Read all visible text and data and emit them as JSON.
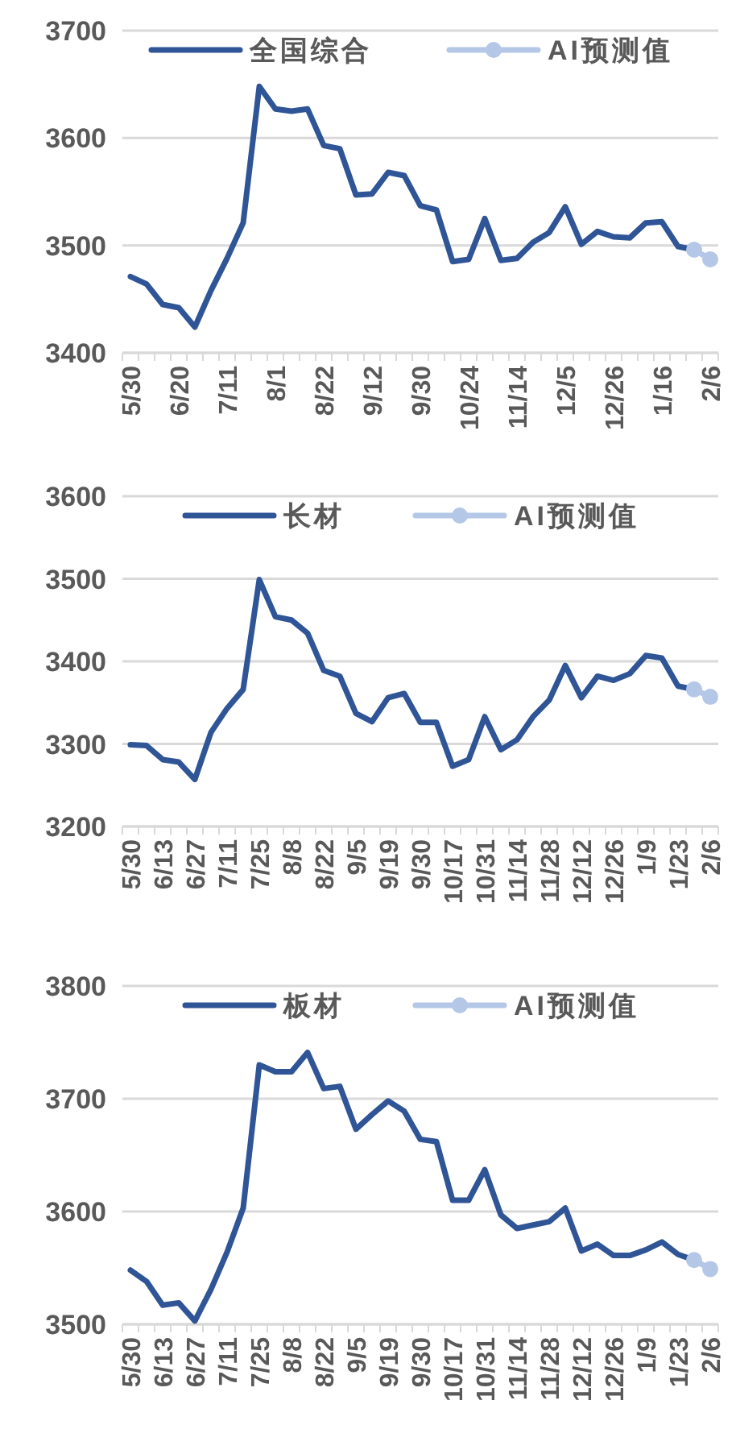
{
  "chart_data": [
    {
      "type": "line",
      "categories": [
        "5/30",
        null,
        null,
        "6/20",
        null,
        null,
        "7/11",
        null,
        null,
        "8/1",
        null,
        null,
        "8/22",
        null,
        null,
        "9/12",
        null,
        null,
        "9/30",
        null,
        null,
        "10/24",
        null,
        null,
        "11/14",
        null,
        null,
        "12/5",
        null,
        null,
        "12/26",
        null,
        null,
        "1/16",
        null,
        null,
        "2/6"
      ],
      "series": [
        {
          "name": "全国综合",
          "color": "#2f5597",
          "values": [
            3471,
            3464,
            3445,
            3442,
            3424,
            3458,
            3488,
            3521,
            3648,
            3627,
            3625,
            3627,
            3593,
            3590,
            3547,
            3548,
            3568,
            3565,
            3537,
            3533,
            3485,
            3487,
            3525,
            3486,
            3488,
            3503,
            3512,
            3536,
            3501,
            3513,
            3508,
            3507,
            3521,
            3522,
            3499,
            3496,
            null
          ]
        },
        {
          "name": "AI预测值",
          "color": "#b4c7e7",
          "marker": "circle",
          "values": [
            null,
            null,
            null,
            null,
            null,
            null,
            null,
            null,
            null,
            null,
            null,
            null,
            null,
            null,
            null,
            null,
            null,
            null,
            null,
            null,
            null,
            null,
            null,
            null,
            null,
            null,
            null,
            null,
            null,
            null,
            null,
            null,
            null,
            null,
            null,
            3496,
            3487
          ]
        }
      ],
      "ylim": [
        3400,
        3700
      ],
      "yticks": [
        3400,
        3500,
        3600,
        3700
      ],
      "grid": "y",
      "legend": "top"
    },
    {
      "type": "line",
      "categories": [
        "5/30",
        null,
        "6/13",
        null,
        "6/27",
        null,
        "7/11",
        null,
        "7/25",
        null,
        "8/8",
        null,
        "8/22",
        null,
        "9/5",
        null,
        "9/19",
        null,
        "9/30",
        null,
        "10/17",
        null,
        "10/31",
        null,
        "11/14",
        null,
        "11/28",
        null,
        "12/12",
        null,
        "12/26",
        null,
        "1/9",
        null,
        "1/23",
        null,
        "2/6"
      ],
      "series": [
        {
          "name": "长材",
          "color": "#2f5597",
          "values": [
            3299,
            3298,
            3281,
            3278,
            3257,
            3314,
            3343,
            3366,
            3499,
            3454,
            3450,
            3434,
            3389,
            3382,
            3337,
            3327,
            3356,
            3361,
            3326,
            3326,
            3273,
            3281,
            3333,
            3293,
            3305,
            3333,
            3353,
            3395,
            3356,
            3382,
            3377,
            3385,
            3407,
            3404,
            3370,
            3366,
            null
          ]
        },
        {
          "name": "AI预测值",
          "color": "#b4c7e7",
          "marker": "circle",
          "values": [
            null,
            null,
            null,
            null,
            null,
            null,
            null,
            null,
            null,
            null,
            null,
            null,
            null,
            null,
            null,
            null,
            null,
            null,
            null,
            null,
            null,
            null,
            null,
            null,
            null,
            null,
            null,
            null,
            null,
            null,
            null,
            null,
            null,
            null,
            null,
            3366,
            3357
          ]
        }
      ],
      "ylim": [
        3200,
        3600
      ],
      "yticks": [
        3200,
        3300,
        3400,
        3500,
        3600
      ],
      "grid": "y",
      "legend": "top"
    },
    {
      "type": "line",
      "categories": [
        "5/30",
        null,
        "6/13",
        null,
        "6/27",
        null,
        "7/11",
        null,
        "7/25",
        null,
        "8/8",
        null,
        "8/22",
        null,
        "9/5",
        null,
        "9/19",
        null,
        "9/30",
        null,
        "10/17",
        null,
        "10/31",
        null,
        "11/14",
        null,
        "11/28",
        null,
        "12/12",
        null,
        "12/26",
        null,
        "1/9",
        null,
        "1/23",
        null,
        "2/6"
      ],
      "series": [
        {
          "name": "板材",
          "color": "#2f5597",
          "values": [
            3548,
            3538,
            3517,
            3519,
            3503,
            3531,
            3564,
            3603,
            3730,
            3724,
            3724,
            3741,
            3709,
            3711,
            3673,
            3686,
            3698,
            3689,
            3664,
            3662,
            3610,
            3610,
            3637,
            3597,
            3585,
            3588,
            3591,
            3603,
            3565,
            3571,
            3561,
            3561,
            3566,
            3573,
            3562,
            3557,
            null
          ]
        },
        {
          "name": "AI预测值",
          "color": "#b4c7e7",
          "marker": "circle",
          "values": [
            null,
            null,
            null,
            null,
            null,
            null,
            null,
            null,
            null,
            null,
            null,
            null,
            null,
            null,
            null,
            null,
            null,
            null,
            null,
            null,
            null,
            null,
            null,
            null,
            null,
            null,
            null,
            null,
            null,
            null,
            null,
            null,
            null,
            null,
            null,
            3557,
            3549
          ]
        }
      ],
      "ylim": [
        3500,
        3800
      ],
      "yticks": [
        3500,
        3600,
        3700,
        3800
      ],
      "grid": "y",
      "legend": "top"
    }
  ]
}
